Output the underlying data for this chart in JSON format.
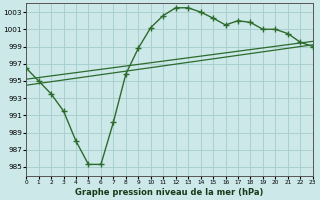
{
  "xlabel": "Graphe pression niveau de la mer (hPa)",
  "bg_color": "#cce8e8",
  "grid_color": "#aad0d0",
  "line_color": "#2d6b2d",
  "xlim": [
    0,
    23
  ],
  "ylim": [
    984,
    1004
  ],
  "yticks": [
    985,
    987,
    989,
    991,
    993,
    995,
    997,
    999,
    1001,
    1003
  ],
  "xticks": [
    0,
    1,
    2,
    3,
    4,
    5,
    6,
    7,
    8,
    9,
    10,
    11,
    12,
    13,
    14,
    15,
    16,
    17,
    18,
    19,
    20,
    21,
    22,
    23
  ],
  "main_x": [
    0,
    1,
    2,
    3,
    4,
    5,
    6,
    7,
    8,
    9,
    10,
    11,
    12,
    13,
    14,
    15,
    16,
    17,
    18,
    19,
    20,
    21,
    22,
    23
  ],
  "main_y": [
    996.5,
    995.0,
    993.5,
    991.5,
    988.0,
    985.3,
    985.3,
    990.2,
    995.8,
    998.8,
    1001.2,
    1002.6,
    1003.5,
    1003.5,
    1003.0,
    1002.3,
    1001.5,
    1002.0,
    1001.8,
    1001.0,
    1001.0,
    1000.5,
    999.5,
    999.0
  ],
  "trend1_x": [
    0,
    23
  ],
  "trend1_y": [
    994.5,
    999.2
  ],
  "trend2_x": [
    0,
    23
  ],
  "trend2_y": [
    995.2,
    999.6
  ]
}
